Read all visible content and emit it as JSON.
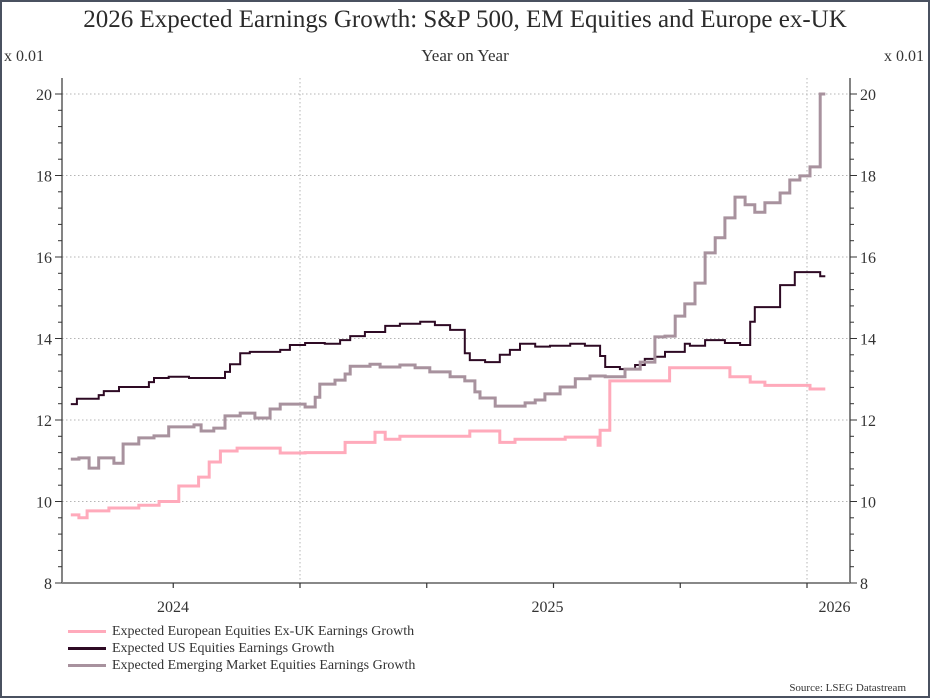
{
  "chart_data": {
    "type": "line",
    "title": "2026 Expected Earnings Growth: S&P 500, EM Equities and Europe ex-UK",
    "subtitle": "Year on Year",
    "ylabel_left": "x 0.01",
    "ylabel_right": "x 0.01",
    "xlabel": "",
    "ylim": [
      8,
      20
    ],
    "yticks": [
      8,
      10,
      12,
      14,
      16,
      18,
      20
    ],
    "xlim": [
      2024.55,
      2026.1
    ],
    "xtick_labels": [
      {
        "label": "2024",
        "x": 2024.75
      },
      {
        "label": "2025",
        "x": 2025.5
      },
      {
        "label": "2026",
        "x": 2026.05
      }
    ],
    "x_minor_ticks": [
      2024.75,
      2025.25,
      2025.5,
      2025.75
    ],
    "x_gridlines": [
      2025.0,
      2026.0
    ],
    "grid": true,
    "step": true,
    "legend_position": "bottom-left",
    "source": "Source: LSEG Datastream",
    "series": [
      {
        "name": "Expected European Equities Ex-UK Earnings Growth",
        "color": "#ffaabb",
        "points": [
          [
            2024.548,
            9.67
          ],
          [
            2024.564,
            9.6
          ],
          [
            2024.58,
            9.77
          ],
          [
            2024.623,
            9.84
          ],
          [
            2024.682,
            9.91
          ],
          [
            2024.722,
            10.0
          ],
          [
            2024.761,
            10.38
          ],
          [
            2024.8,
            10.6
          ],
          [
            2024.821,
            10.97
          ],
          [
            2024.843,
            11.24
          ],
          [
            2024.876,
            11.31
          ],
          [
            2024.961,
            11.19
          ],
          [
            2025.01,
            11.2
          ],
          [
            2025.089,
            11.45
          ],
          [
            2025.148,
            11.7
          ],
          [
            2025.168,
            11.53
          ],
          [
            2025.197,
            11.6
          ],
          [
            2025.335,
            11.73
          ],
          [
            2025.394,
            11.45
          ],
          [
            2025.424,
            11.53
          ],
          [
            2025.523,
            11.58
          ],
          [
            2025.588,
            11.38
          ],
          [
            2025.592,
            11.75
          ],
          [
            2025.611,
            12.96
          ],
          [
            2025.729,
            13.28
          ],
          [
            2025.848,
            13.06
          ],
          [
            2025.888,
            12.93
          ],
          [
            2025.917,
            12.85
          ],
          [
            2026.006,
            12.76
          ],
          [
            2026.036,
            12.76
          ]
        ]
      },
      {
        "name": "Expected US Equities Earnings Growth",
        "color": "#2e0a24",
        "points": [
          [
            2024.548,
            12.39
          ],
          [
            2024.56,
            12.52
          ],
          [
            2024.603,
            12.61
          ],
          [
            2024.613,
            12.71
          ],
          [
            2024.643,
            12.81
          ],
          [
            2024.702,
            12.93
          ],
          [
            2024.712,
            13.03
          ],
          [
            2024.741,
            13.06
          ],
          [
            2024.781,
            13.03
          ],
          [
            2024.852,
            13.18
          ],
          [
            2024.862,
            13.37
          ],
          [
            2024.882,
            13.64
          ],
          [
            2024.901,
            13.67
          ],
          [
            2024.961,
            13.72
          ],
          [
            2024.98,
            13.84
          ],
          [
            2025.01,
            13.89
          ],
          [
            2025.049,
            13.87
          ],
          [
            2025.079,
            13.96
          ],
          [
            2025.099,
            14.06
          ],
          [
            2025.128,
            14.16
          ],
          [
            2025.168,
            14.31
          ],
          [
            2025.197,
            14.36
          ],
          [
            2025.237,
            14.41
          ],
          [
            2025.266,
            14.33
          ],
          [
            2025.296,
            14.21
          ],
          [
            2025.325,
            13.64
          ],
          [
            2025.335,
            13.47
          ],
          [
            2025.365,
            13.42
          ],
          [
            2025.394,
            13.6
          ],
          [
            2025.414,
            13.72
          ],
          [
            2025.434,
            13.87
          ],
          [
            2025.464,
            13.8
          ],
          [
            2025.493,
            13.82
          ],
          [
            2025.533,
            13.87
          ],
          [
            2025.562,
            13.82
          ],
          [
            2025.592,
            13.57
          ],
          [
            2025.602,
            13.3
          ],
          [
            2025.631,
            13.25
          ],
          [
            2025.661,
            13.35
          ],
          [
            2025.68,
            13.5
          ],
          [
            2025.7,
            13.55
          ],
          [
            2025.72,
            13.67
          ],
          [
            2025.759,
            13.87
          ],
          [
            2025.769,
            13.82
          ],
          [
            2025.799,
            13.96
          ],
          [
            2025.838,
            13.89
          ],
          [
            2025.868,
            13.84
          ],
          [
            2025.888,
            14.41
          ],
          [
            2025.897,
            14.77
          ],
          [
            2025.947,
            15.31
          ],
          [
            2025.976,
            15.63
          ],
          [
            2026.026,
            15.53
          ],
          [
            2026.036,
            15.53
          ]
        ]
      },
      {
        "name": "Expected Emerging Market Equities Earnings Growth",
        "color": "#a8929e",
        "points": [
          [
            2024.548,
            11.04
          ],
          [
            2024.564,
            11.07
          ],
          [
            2024.584,
            10.82
          ],
          [
            2024.603,
            11.07
          ],
          [
            2024.633,
            10.94
          ],
          [
            2024.651,
            11.41
          ],
          [
            2024.682,
            11.56
          ],
          [
            2024.712,
            11.61
          ],
          [
            2024.741,
            11.83
          ],
          [
            2024.791,
            11.88
          ],
          [
            2024.805,
            11.73
          ],
          [
            2024.83,
            11.8
          ],
          [
            2024.852,
            12.1
          ],
          [
            2024.882,
            12.17
          ],
          [
            2024.911,
            12.05
          ],
          [
            2024.941,
            12.27
          ],
          [
            2024.961,
            12.39
          ],
          [
            2025.01,
            12.32
          ],
          [
            2025.03,
            12.56
          ],
          [
            2025.039,
            12.88
          ],
          [
            2025.069,
            12.98
          ],
          [
            2025.089,
            13.13
          ],
          [
            2025.099,
            13.32
          ],
          [
            2025.138,
            13.37
          ],
          [
            2025.158,
            13.3
          ],
          [
            2025.197,
            13.35
          ],
          [
            2025.227,
            13.28
          ],
          [
            2025.256,
            13.18
          ],
          [
            2025.296,
            13.06
          ],
          [
            2025.325,
            12.96
          ],
          [
            2025.345,
            12.69
          ],
          [
            2025.355,
            12.54
          ],
          [
            2025.385,
            12.34
          ],
          [
            2025.444,
            12.42
          ],
          [
            2025.464,
            12.49
          ],
          [
            2025.483,
            12.64
          ],
          [
            2025.513,
            12.81
          ],
          [
            2025.543,
            13.01
          ],
          [
            2025.572,
            13.08
          ],
          [
            2025.602,
            13.06
          ],
          [
            2025.641,
            13.25
          ],
          [
            2025.671,
            13.42
          ],
          [
            2025.7,
            14.04
          ],
          [
            2025.72,
            14.06
          ],
          [
            2025.74,
            14.55
          ],
          [
            2025.759,
            14.85
          ],
          [
            2025.779,
            15.36
          ],
          [
            2025.799,
            16.1
          ],
          [
            2025.819,
            16.47
          ],
          [
            2025.838,
            16.96
          ],
          [
            2025.858,
            17.47
          ],
          [
            2025.878,
            17.28
          ],
          [
            2025.897,
            17.1
          ],
          [
            2025.917,
            17.33
          ],
          [
            2025.947,
            17.57
          ],
          [
            2025.966,
            17.89
          ],
          [
            2025.986,
            17.99
          ],
          [
            2026.006,
            18.21
          ],
          [
            2026.026,
            20.0
          ],
          [
            2026.036,
            20.0
          ]
        ]
      }
    ]
  }
}
